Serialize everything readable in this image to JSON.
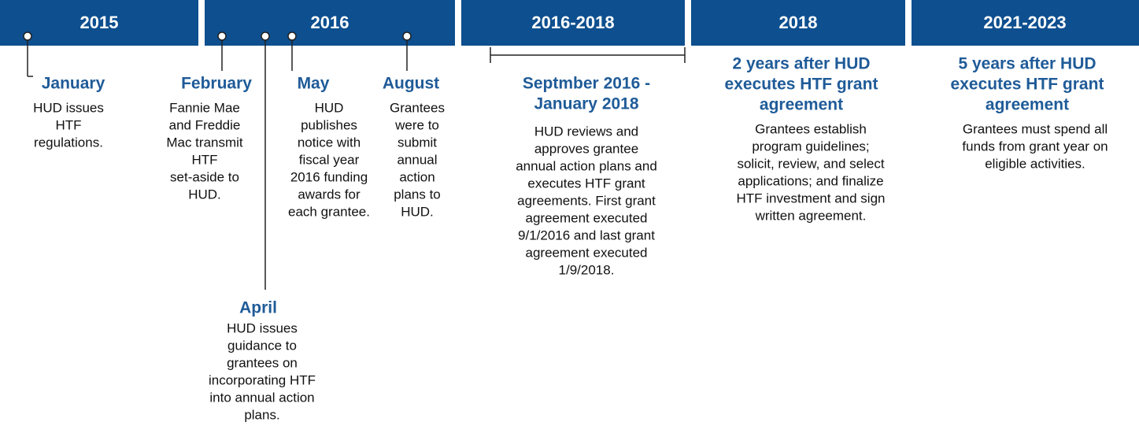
{
  "periods": [
    "2015",
    "2016",
    "2016-2018",
    "2018",
    "2021-2023"
  ],
  "events": [
    {
      "title": [
        "January"
      ],
      "description": [
        "HUD issues",
        "HTF",
        "regulations."
      ]
    },
    {
      "title": [
        "February"
      ],
      "description": [
        "Fannie Mae",
        "and Freddie",
        "Mac transmit",
        "HTF",
        "set-aside to",
        "HUD."
      ]
    },
    {
      "title": [
        "April"
      ],
      "description": [
        "HUD issues",
        "guidance to",
        "grantees on",
        "incorporating HTF",
        "into annual action",
        "plans."
      ]
    },
    {
      "title": [
        "May"
      ],
      "description": [
        "HUD",
        "publishes",
        "notice with",
        "fiscal year",
        "2016 funding",
        "awards for",
        "each grantee."
      ]
    },
    {
      "title": [
        "August"
      ],
      "description": [
        "Grantees",
        "were to",
        "submit",
        "annual",
        "action",
        "plans to",
        "HUD."
      ]
    },
    {
      "title": [
        "Septmber 2016 -",
        "January 2018"
      ],
      "description": [
        "HUD reviews and",
        "approves grantee",
        "annual action plans and",
        "executes HTF grant",
        "agreements. First grant",
        "agreement executed",
        "9/1/2016 and last grant",
        "agreement executed",
        "1/9/2018."
      ]
    },
    {
      "title": [
        "2 years after HUD",
        "executes HTF grant",
        "agreement"
      ],
      "description": [
        "Grantees establish",
        "program guidelines;",
        "solicit, review, and select",
        "applications; and finalize",
        "HTF investment and sign",
        "written agreement."
      ]
    },
    {
      "title": [
        "5 years after HUD",
        "executes HTF grant",
        "agreement"
      ],
      "description": [
        "Grantees must spend all",
        "funds from grant year on",
        "eligible activities."
      ]
    }
  ]
}
